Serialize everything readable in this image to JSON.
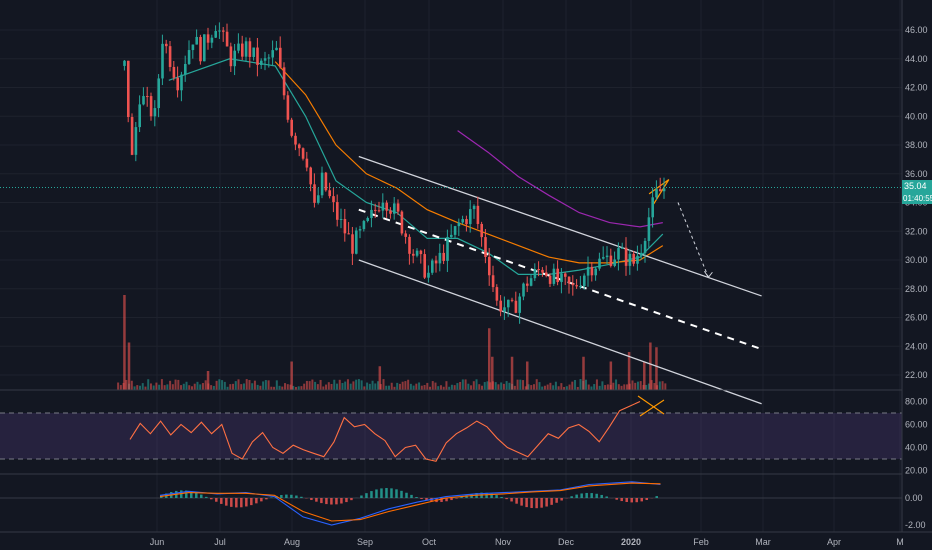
{
  "chart_data": {
    "type": "candlestick",
    "price_axis": {
      "ticks": [
        "46.00",
        "44.00",
        "42.00",
        "40.00",
        "38.00",
        "36.00",
        "34.00",
        "32.00",
        "30.00",
        "28.00",
        "26.00",
        "24.00",
        "22.00"
      ],
      "ylim": [
        21,
        47
      ],
      "last_price_label": "35.04",
      "countdown_label": "01:40:55"
    },
    "time_axis": {
      "labels": [
        "Jun",
        "Jul",
        "Aug",
        "Sep",
        "Oct",
        "Nov",
        "Dec",
        "2020",
        "Feb",
        "Mar",
        "Apr",
        "M"
      ]
    },
    "price_path": [
      {
        "t": 1.0,
        "p": 43.5
      },
      {
        "t": 1.5,
        "p": 37.0
      },
      {
        "t": 2.0,
        "p": 41.5
      },
      {
        "t": 3.0,
        "p": 40.0
      },
      {
        "t": 3.5,
        "p": 45.5
      },
      {
        "t": 4.5,
        "p": 42.5
      },
      {
        "t": 5.5,
        "p": 45.5
      },
      {
        "t": 6.0,
        "p": 44.5
      },
      {
        "t": 7.0,
        "p": 46.5
      },
      {
        "t": 8.0,
        "p": 44.0
      },
      {
        "t": 9.0,
        "p": 44.8
      },
      {
        "t": 10.0,
        "p": 43.5
      },
      {
        "t": 11.0,
        "p": 44.5
      },
      {
        "t": 11.5,
        "p": 41.5
      },
      {
        "t": 12.0,
        "p": 39.0
      },
      {
        "t": 13.0,
        "p": 37.0
      },
      {
        "t": 13.5,
        "p": 33.5
      },
      {
        "t": 14.0,
        "p": 35.5
      },
      {
        "t": 15.0,
        "p": 33.0
      },
      {
        "t": 16.0,
        "p": 31.0
      },
      {
        "t": 17.0,
        "p": 32.5
      },
      {
        "t": 18.0,
        "p": 34.5
      },
      {
        "t": 19.0,
        "p": 33.0
      },
      {
        "t": 20.0,
        "p": 30.5
      },
      {
        "t": 21.0,
        "p": 29.0
      },
      {
        "t": 22.0,
        "p": 30.5
      },
      {
        "t": 23.0,
        "p": 32.5
      },
      {
        "t": 24.0,
        "p": 33.5
      },
      {
        "t": 24.5,
        "p": 31.5
      },
      {
        "t": 25.0,
        "p": 29.5
      },
      {
        "t": 25.5,
        "p": 27.0
      },
      {
        "t": 26.5,
        "p": 26.5
      },
      {
        "t": 27.5,
        "p": 28.5
      },
      {
        "t": 28.5,
        "p": 29.5
      },
      {
        "t": 29.5,
        "p": 28.5
      },
      {
        "t": 30.5,
        "p": 28.0
      },
      {
        "t": 31.5,
        "p": 29.5
      },
      {
        "t": 32.5,
        "p": 30.0
      },
      {
        "t": 33.5,
        "p": 30.5
      },
      {
        "t": 34.5,
        "p": 29.8
      },
      {
        "t": 35.0,
        "p": 31.0
      },
      {
        "t": 35.5,
        "p": 33.0
      },
      {
        "t": 36.0,
        "p": 34.5
      },
      {
        "t": 36.5,
        "p": 35.04
      }
    ],
    "moving_averages": [
      {
        "color": "#26a69a",
        "points": [
          [
            4,
            42.5
          ],
          [
            8,
            44.0
          ],
          [
            11,
            43.5
          ],
          [
            13,
            40.0
          ],
          [
            15,
            35.5
          ],
          [
            17,
            34.0
          ],
          [
            19,
            33.3
          ],
          [
            21,
            31.5
          ],
          [
            23,
            31.5
          ],
          [
            25,
            30.5
          ],
          [
            27,
            29.0
          ],
          [
            29,
            29.0
          ],
          [
            31,
            29.3
          ],
          [
            33,
            29.7
          ],
          [
            35,
            30.2
          ],
          [
            36.5,
            31.8
          ]
        ]
      },
      {
        "color": "#f57c00",
        "points": [
          [
            11,
            43.8
          ],
          [
            13,
            41.5
          ],
          [
            15,
            38.0
          ],
          [
            17,
            36.0
          ],
          [
            19,
            35.0
          ],
          [
            21,
            33.5
          ],
          [
            23,
            32.6
          ],
          [
            25,
            31.8
          ],
          [
            27,
            31.0
          ],
          [
            29,
            30.2
          ],
          [
            31,
            29.8
          ],
          [
            33,
            29.8
          ],
          [
            35,
            30.0
          ],
          [
            36.5,
            31.0
          ]
        ]
      },
      {
        "color": "#9c27b0",
        "points": [
          [
            23,
            39.0
          ],
          [
            25,
            37.5
          ],
          [
            27,
            35.8
          ],
          [
            29,
            34.5
          ],
          [
            31,
            33.3
          ],
          [
            33,
            32.6
          ],
          [
            35,
            32.3
          ],
          [
            36.5,
            32.6
          ]
        ]
      }
    ],
    "drawings": {
      "upper_channel": [
        [
          16.5,
          37.2
        ],
        [
          43.0,
          27.5
        ]
      ],
      "lower_channel": [
        [
          16.5,
          30.0
        ],
        [
          43.0,
          20.0
        ]
      ],
      "mid_channel": [
        [
          16.5,
          33.5
        ],
        [
          43.0,
          23.8
        ]
      ],
      "current_price_line": 35.04,
      "projection_arrow": [
        [
          37.5,
          34.0
        ],
        [
          39.5,
          28.8
        ]
      ]
    },
    "volume": [
      {
        "t": 1.0,
        "v": 1.0
      },
      {
        "t": 1.3,
        "v": 0.5
      },
      {
        "t": 6.5,
        "v": 0.2
      },
      {
        "t": 12.0,
        "v": 0.3
      },
      {
        "t": 17.8,
        "v": 0.25
      },
      {
        "t": 25.0,
        "v": 0.65
      },
      {
        "t": 25.2,
        "v": 0.35
      },
      {
        "t": 26.5,
        "v": 0.35
      },
      {
        "t": 27.5,
        "v": 0.3
      },
      {
        "t": 31.2,
        "v": 0.35
      },
      {
        "t": 33.0,
        "v": 0.3
      },
      {
        "t": 34.2,
        "v": 0.4
      },
      {
        "t": 35.2,
        "v": 0.3
      },
      {
        "t": 35.6,
        "v": 0.5
      },
      {
        "t": 36.0,
        "v": 0.45
      }
    ],
    "rsi": {
      "ticks": [
        "80.00",
        "60.00",
        "40.00",
        "20.00"
      ],
      "ylim": [
        16,
        86
      ],
      "overbought": 70,
      "oversold": 30,
      "points": [
        [
          7,
          47
        ],
        [
          8,
          61
        ],
        [
          9,
          52
        ],
        [
          10,
          63
        ],
        [
          11,
          51
        ],
        [
          12,
          60
        ],
        [
          13,
          53
        ],
        [
          14,
          62
        ],
        [
          15,
          52
        ],
        [
          16,
          60
        ],
        [
          17,
          35
        ],
        [
          18,
          30
        ],
        [
          19,
          45
        ],
        [
          20,
          53
        ],
        [
          21,
          40
        ],
        [
          22,
          35
        ],
        [
          23,
          42
        ],
        [
          24,
          38
        ],
        [
          25,
          35
        ],
        [
          26,
          32
        ],
        [
          27,
          45
        ],
        [
          28,
          66
        ],
        [
          29,
          58
        ],
        [
          30,
          60
        ],
        [
          31,
          52
        ],
        [
          32,
          46
        ],
        [
          33,
          32
        ],
        [
          34,
          40
        ],
        [
          35,
          42
        ],
        [
          36,
          30
        ],
        [
          37,
          28
        ],
        [
          38,
          44
        ],
        [
          39,
          52
        ],
        [
          40,
          57
        ],
        [
          41,
          63
        ],
        [
          42,
          58
        ],
        [
          43,
          48
        ],
        [
          44,
          40
        ],
        [
          45,
          36
        ],
        [
          46,
          32
        ],
        [
          47,
          42
        ],
        [
          48,
          52
        ],
        [
          49,
          48
        ],
        [
          50,
          57
        ],
        [
          51,
          60
        ],
        [
          52,
          54
        ],
        [
          53,
          45
        ],
        [
          54,
          58
        ],
        [
          55,
          72
        ],
        [
          56,
          76
        ],
        [
          57,
          80
        ]
      ]
    },
    "macd": {
      "ticks": [
        "0.00",
        "-2.00"
      ],
      "ylim": [
        -2.6,
        1.4
      ],
      "macd_line": [
        [
          7,
          0.2
        ],
        [
          9,
          0.5
        ],
        [
          11,
          0.3
        ],
        [
          13,
          0.4
        ],
        [
          15,
          0.1
        ],
        [
          17,
          -1.4
        ],
        [
          19,
          -2.0
        ],
        [
          21,
          -1.5
        ],
        [
          23,
          -0.8
        ],
        [
          25,
          -0.3
        ],
        [
          27,
          0.1
        ],
        [
          29,
          0.3
        ],
        [
          31,
          0.4
        ],
        [
          33,
          0.5
        ],
        [
          35,
          0.6
        ],
        [
          37,
          1.0
        ],
        [
          40,
          1.2
        ],
        [
          42,
          1.0
        ]
      ],
      "signal_line": [
        [
          7,
          0.1
        ],
        [
          9,
          0.4
        ],
        [
          11,
          0.35
        ],
        [
          13,
          0.35
        ],
        [
          15,
          0.2
        ],
        [
          17,
          -1.0
        ],
        [
          19,
          -1.7
        ],
        [
          21,
          -1.6
        ],
        [
          23,
          -1.0
        ],
        [
          25,
          -0.5
        ],
        [
          27,
          0.0
        ],
        [
          29,
          0.2
        ],
        [
          31,
          0.3
        ],
        [
          33,
          0.45
        ],
        [
          35,
          0.55
        ],
        [
          37,
          0.9
        ],
        [
          40,
          1.1
        ],
        [
          42,
          1.05
        ]
      ]
    }
  }
}
